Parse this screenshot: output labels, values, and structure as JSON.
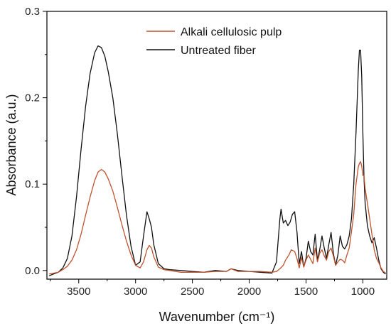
{
  "chart_data": {
    "type": "line",
    "title": "",
    "xlabel": "Wavenumber (cm⁻¹)",
    "ylabel": "Absorbance (a.u.)",
    "xlim": [
      3780,
      790
    ],
    "ylim": [
      -0.01,
      0.3
    ],
    "x_reversed": true,
    "x_ticks": [
      3500,
      3000,
      2500,
      2000,
      1500,
      1000
    ],
    "y_ticks": [
      0.0,
      0.1,
      0.2,
      0.3
    ],
    "y_tick_labels": [
      "0.0",
      "0.1",
      "0.2",
      "0.3"
    ],
    "grid": false,
    "legend_position": "top-center",
    "series": [
      {
        "name": "Alkali cellulosic pulp",
        "color": "#c0532f",
        "x": [
          3760,
          3720,
          3680,
          3640,
          3600,
          3560,
          3520,
          3480,
          3440,
          3400,
          3360,
          3330,
          3300,
          3270,
          3240,
          3200,
          3160,
          3120,
          3080,
          3040,
          3000,
          2960,
          2930,
          2900,
          2880,
          2860,
          2840,
          2800,
          2750,
          2700,
          2600,
          2500,
          2400,
          2300,
          2200,
          2160,
          2100,
          2000,
          1900,
          1800,
          1760,
          1730,
          1700,
          1680,
          1650,
          1630,
          1600,
          1580,
          1560,
          1540,
          1520,
          1500,
          1480,
          1460,
          1440,
          1420,
          1400,
          1380,
          1360,
          1340,
          1320,
          1300,
          1280,
          1260,
          1240,
          1220,
          1200,
          1180,
          1160,
          1140,
          1120,
          1100,
          1080,
          1060,
          1040,
          1030,
          1020,
          1010,
          1000,
          990,
          980,
          960,
          940,
          920,
          900,
          880,
          860,
          840,
          820,
          800
        ],
        "y": [
          -0.004,
          -0.003,
          -0.002,
          0.001,
          0.005,
          0.012,
          0.024,
          0.042,
          0.064,
          0.085,
          0.104,
          0.114,
          0.117,
          0.114,
          0.106,
          0.092,
          0.073,
          0.053,
          0.034,
          0.018,
          0.006,
          0.003,
          0.01,
          0.024,
          0.029,
          0.026,
          0.016,
          0.004,
          0.001,
          0.0,
          -0.002,
          -0.002,
          -0.002,
          -0.001,
          -0.001,
          0.002,
          -0.001,
          -0.001,
          -0.001,
          -0.002,
          -0.001,
          0.002,
          0.006,
          0.012,
          0.018,
          0.024,
          0.022,
          0.014,
          0.003,
          0.015,
          0.004,
          0.012,
          0.018,
          0.013,
          0.008,
          0.026,
          0.01,
          0.02,
          0.024,
          0.017,
          0.012,
          0.022,
          0.026,
          0.017,
          0.006,
          0.01,
          0.013,
          0.012,
          0.009,
          0.018,
          0.026,
          0.045,
          0.065,
          0.1,
          0.12,
          0.124,
          0.126,
          0.121,
          0.11,
          0.11,
          0.095,
          0.078,
          0.06,
          0.042,
          0.024,
          0.014,
          0.009,
          0.003,
          -0.001,
          -0.003
        ]
      },
      {
        "name": "Untreated fiber",
        "color": "#111111",
        "x": [
          3760,
          3720,
          3680,
          3640,
          3600,
          3560,
          3520,
          3480,
          3440,
          3400,
          3360,
          3330,
          3300,
          3270,
          3240,
          3200,
          3160,
          3120,
          3080,
          3040,
          3000,
          2960,
          2930,
          2900,
          2880,
          2860,
          2840,
          2800,
          2750,
          2700,
          2600,
          2500,
          2400,
          2300,
          2200,
          2160,
          2100,
          2000,
          1900,
          1800,
          1760,
          1730,
          1720,
          1700,
          1680,
          1660,
          1640,
          1620,
          1600,
          1580,
          1560,
          1540,
          1520,
          1500,
          1480,
          1460,
          1440,
          1420,
          1400,
          1380,
          1360,
          1340,
          1320,
          1300,
          1280,
          1260,
          1240,
          1220,
          1200,
          1180,
          1160,
          1140,
          1120,
          1100,
          1080,
          1060,
          1040,
          1030,
          1020,
          1010,
          1000,
          990,
          980,
          960,
          940,
          920,
          900,
          880,
          860,
          840,
          820,
          800
        ],
        "y": [
          -0.006,
          -0.004,
          -0.002,
          0.003,
          0.014,
          0.04,
          0.085,
          0.14,
          0.19,
          0.228,
          0.252,
          0.26,
          0.258,
          0.248,
          0.23,
          0.2,
          0.158,
          0.11,
          0.064,
          0.028,
          0.006,
          0.01,
          0.04,
          0.068,
          0.06,
          0.05,
          0.03,
          0.008,
          0.002,
          0.001,
          0.0,
          -0.001,
          -0.002,
          0.0,
          -0.001,
          0.002,
          0.0,
          -0.001,
          -0.002,
          -0.003,
          0.01,
          0.06,
          0.071,
          0.055,
          0.058,
          0.052,
          0.056,
          0.065,
          0.068,
          0.045,
          0.008,
          0.022,
          0.004,
          0.014,
          0.034,
          0.022,
          0.018,
          0.042,
          0.012,
          0.024,
          0.04,
          0.026,
          0.014,
          0.03,
          0.044,
          0.02,
          0.006,
          0.018,
          0.04,
          0.028,
          0.025,
          0.03,
          0.04,
          0.06,
          0.1,
          0.16,
          0.232,
          0.255,
          0.255,
          0.225,
          0.16,
          0.108,
          0.078,
          0.052,
          0.04,
          0.032,
          0.038,
          0.026,
          0.012,
          0.002,
          -0.002,
          -0.004
        ]
      }
    ]
  }
}
